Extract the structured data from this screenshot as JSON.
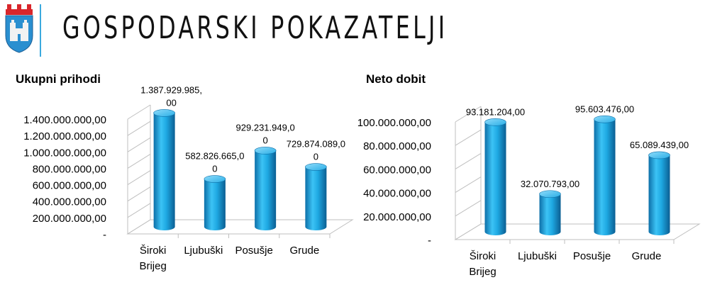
{
  "header": {
    "title": "GOSPODARSKI POKAZATELJI",
    "logo_icon": "coat-of-arms-icon",
    "accent_color": "#3ba9de"
  },
  "chart_data": [
    {
      "type": "bar",
      "title": "Ukupni prihodi",
      "categories": [
        "Široki Brijeg",
        "Ljubuški",
        "Posušje",
        "Grude"
      ],
      "category_lines": [
        [
          "Široki",
          "Brijeg"
        ],
        [
          "Ljubuški"
        ],
        [
          "Posušje"
        ],
        [
          "Grude"
        ]
      ],
      "values": [
        1387929985.0,
        582826665.0,
        929231949.0,
        729874089.0
      ],
      "data_labels": [
        [
          "1.387.929.985,",
          "00"
        ],
        [
          "582.826.665,0",
          "0"
        ],
        [
          "929.231.949,0",
          "0"
        ],
        [
          "729.874.089,0",
          "0"
        ]
      ],
      "ylim": [
        0,
        1400000000
      ],
      "yticks": [
        0,
        200000000,
        400000000,
        600000000,
        800000000,
        1000000000,
        1200000000,
        1400000000
      ],
      "ytick_labels": [
        "-",
        "200.000.000,00",
        "400.000.000,00",
        "600.000.000,00",
        "800.000.000,00",
        "1.000.000.000,00",
        "1.200.000.000,00",
        "1.400.000.000,00"
      ],
      "bar_color": "#1ea8e2",
      "style": "3d-cylinder",
      "grid": false,
      "legend": "none"
    },
    {
      "type": "bar",
      "title": "Neto dobit",
      "categories": [
        "Široki Brijeg",
        "Ljubuški",
        "Posušje",
        "Grude"
      ],
      "category_lines": [
        [
          "Široki",
          "Brijeg"
        ],
        [
          "Ljubuški"
        ],
        [
          "Posušje"
        ],
        [
          "Grude"
        ]
      ],
      "values": [
        93181204.0,
        32070793.0,
        95603476.0,
        65089439.0
      ],
      "data_labels": [
        [
          "93.181.204,00"
        ],
        [
          "32.070.793,00"
        ],
        [
          "95.603.476,00"
        ],
        [
          "65.089.439,00"
        ]
      ],
      "ylim": [
        0,
        100000000
      ],
      "yticks": [
        0,
        20000000,
        40000000,
        60000000,
        80000000,
        100000000
      ],
      "ytick_labels": [
        "-",
        "20.000.000,00",
        "40.000.000,00",
        "60.000.000,00",
        "80.000.000,00",
        "100.000.000,00"
      ],
      "bar_color": "#1ea8e2",
      "style": "3d-cylinder",
      "grid": false,
      "legend": "none"
    }
  ]
}
